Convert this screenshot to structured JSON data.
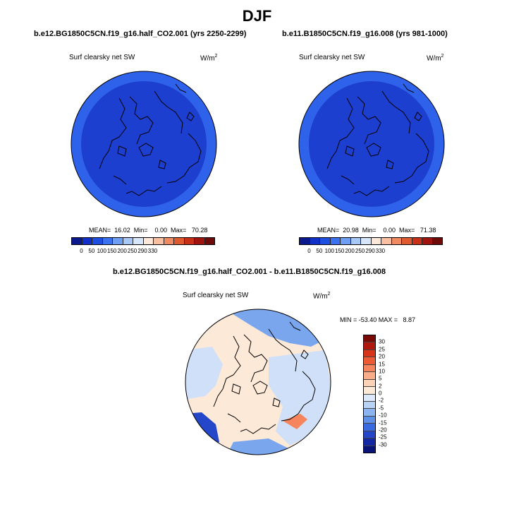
{
  "title": "DJF",
  "panels": [
    {
      "subtitle": "b.e12.BG1850C5CN.f19_g16.half_CO2.001 (yrs 2250-2299)",
      "variable": "Surf clearsky net SW",
      "units_base": "W/m",
      "units_exp": "2",
      "stats_text": "MEAN=  16.02  Min=    0.00  Max=   70.28",
      "colorbar": {
        "tick_labels": [
          "0",
          "50",
          "100",
          "150",
          "200",
          "250",
          "290",
          "330"
        ],
        "colors": [
          "#0a1a8c",
          "#1030c8",
          "#1e4fe0",
          "#3a72f0",
          "#6f9ef5",
          "#a8c8f8",
          "#d6e6fb",
          "#fde8da",
          "#f8c0a0",
          "#f08a60",
          "#e05a30",
          "#c83018",
          "#a01410",
          "#6e0a08"
        ]
      }
    },
    {
      "subtitle": "b.e11.B1850C5CN.f19_g16.008 (yrs 981-1000)",
      "variable": "Surf clearsky net SW",
      "units_base": "W/m",
      "units_exp": "2",
      "stats_text": "MEAN=  20.98  Min=    0.00  Max=   71.38",
      "colorbar": {
        "tick_labels": [
          "0",
          "50",
          "100",
          "150",
          "200",
          "250",
          "290",
          "330"
        ],
        "colors": [
          "#0a1a8c",
          "#1030c8",
          "#1e4fe0",
          "#3a72f0",
          "#6f9ef5",
          "#a8c8f8",
          "#d6e6fb",
          "#fde8da",
          "#f8c0a0",
          "#f08a60",
          "#e05a30",
          "#c83018",
          "#a01410",
          "#6e0a08"
        ]
      }
    }
  ],
  "difference_panel": {
    "subtitle": "b.e12.BG1850C5CN.f19_g16.half_CO2.001 - b.e11.B1850C5CN.f19_g16.008",
    "variable": "Surf clearsky net SW",
    "units_base": "W/m",
    "units_exp": "2",
    "stats_text": "MIN = -53.40 MAX =   8.87",
    "colorbar": {
      "tick_labels": [
        "30",
        "25",
        "20",
        "15",
        "10",
        "5",
        "2",
        "0",
        "-2",
        "-5",
        "-10",
        "-15",
        "-20",
        "-25",
        "-30"
      ],
      "colors": [
        "#7a0a06",
        "#b0180e",
        "#d8341a",
        "#ee5a34",
        "#f6845c",
        "#f8ac88",
        "#fbd2b6",
        "#fde9d8",
        "#dce9fb",
        "#b8d2f6",
        "#8cb4f0",
        "#5e90e8",
        "#3a6ae0",
        "#2446c8",
        "#1428a4",
        "#0a1478"
      ]
    }
  },
  "map_colors": {
    "panel_background": "#1d3fcf",
    "panel_rim": "#2f62ea",
    "diff_background": "#fde9d8",
    "diff_light_blue": "#cfe0f8",
    "diff_mid_blue": "#7aa6ee",
    "diff_dark_blue": "#2446c8",
    "diff_red": "#f6845c"
  }
}
